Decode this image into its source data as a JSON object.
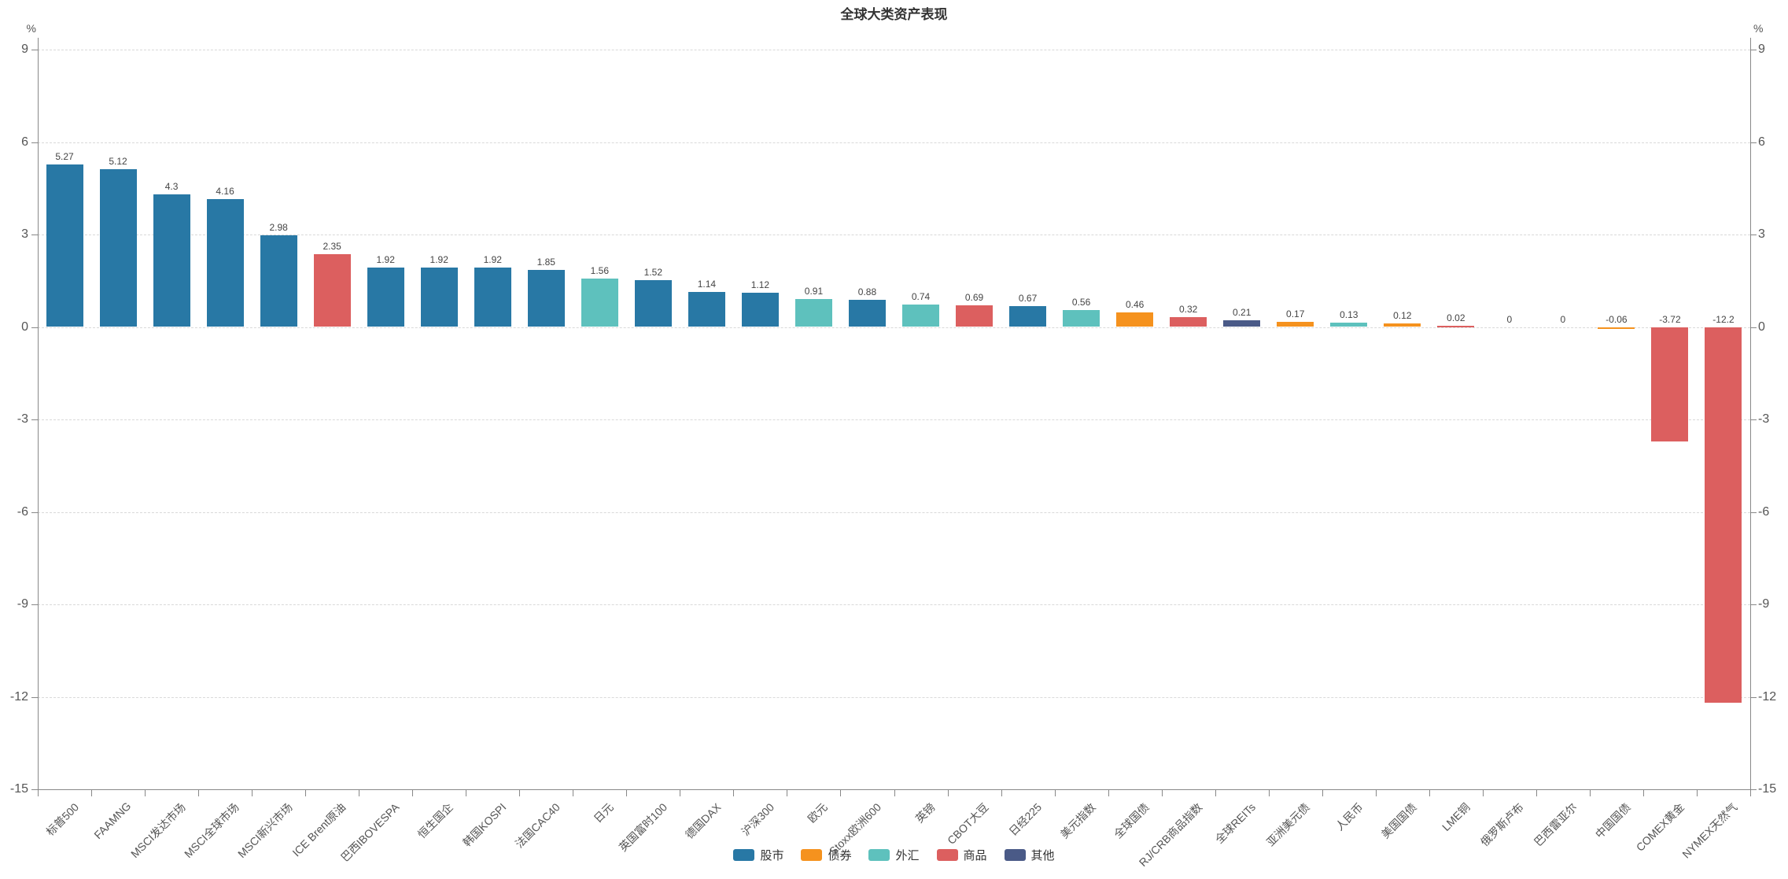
{
  "title": "全球大类资产表现",
  "y_axis": {
    "unit": "%",
    "max": 9,
    "min": -15,
    "ticks": [
      9,
      6,
      3,
      0,
      -3,
      -6,
      -9,
      -12,
      -15
    ]
  },
  "legend_order": [
    "股市",
    "债券",
    "外汇",
    "商品",
    "其他"
  ],
  "chart_data": {
    "type": "bar",
    "title": "全球大类资产表现",
    "xlabel": "",
    "ylabel": "%",
    "ylim": [
      -15,
      9
    ],
    "grid": "dashed-horizontal",
    "legend_position": "bottom",
    "categories": [
      "标普500",
      "FAAMNG",
      "MSCI发达市场",
      "MSCI全球市场",
      "MSCI新兴市场",
      "ICE Brent原油",
      "巴西IBOVESPA",
      "恒生国企",
      "韩国KOSPI",
      "法国CAC40",
      "日元",
      "英国富时100",
      "德国DAX",
      "沪深300",
      "欧元",
      "Stoxx欧洲600",
      "英镑",
      "CBOT大豆",
      "日经225",
      "美元指数",
      "全球国债",
      "RJ/CRB商品指数",
      "全球REITs",
      "亚洲美元债",
      "人民币",
      "美国国债",
      "LME铜",
      "俄罗斯卢布",
      "巴西雷亚尔",
      "中国国债",
      "COMEX黄金",
      "NYMEX天然气"
    ],
    "values": [
      5.27,
      5.12,
      4.3,
      4.16,
      2.98,
      2.35,
      1.92,
      1.92,
      1.92,
      1.85,
      1.56,
      1.52,
      1.14,
      1.12,
      0.91,
      0.88,
      0.74,
      0.69,
      0.67,
      0.56,
      0.46,
      0.32,
      0.21,
      0.17,
      0.13,
      0.12,
      0.02,
      0,
      0,
      -0.06,
      -3.72,
      -12.2
    ],
    "value_labels": [
      "5.27",
      "5.12",
      "4.3",
      "4.16",
      "2.98",
      "2.35",
      "1.92",
      "1.92",
      "1.92",
      "1.85",
      "1.56",
      "1.52",
      "1.14",
      "1.12",
      "0.91",
      "0.88",
      "0.74",
      "0.69",
      "0.67",
      "0.56",
      "0.46",
      "0.32",
      "0.21",
      "0.17",
      "0.13",
      "0.12",
      "0.02",
      "0",
      "0",
      "-0.06",
      "-3.72",
      "-12.2"
    ],
    "groups": [
      "股市",
      "股市",
      "股市",
      "股市",
      "股市",
      "商品",
      "股市",
      "股市",
      "股市",
      "股市",
      "外汇",
      "股市",
      "股市",
      "股市",
      "外汇",
      "股市",
      "外汇",
      "商品",
      "股市",
      "外汇",
      "债券",
      "商品",
      "其他",
      "债券",
      "外汇",
      "债券",
      "商品",
      "外汇",
      "外汇",
      "债券",
      "商品",
      "商品"
    ],
    "group_colors": {
      "股市": "#2878a5",
      "债券": "#f5921e",
      "外汇": "#5ec1bd",
      "商品": "#dc5f5f",
      "其他": "#4a5a87"
    }
  }
}
